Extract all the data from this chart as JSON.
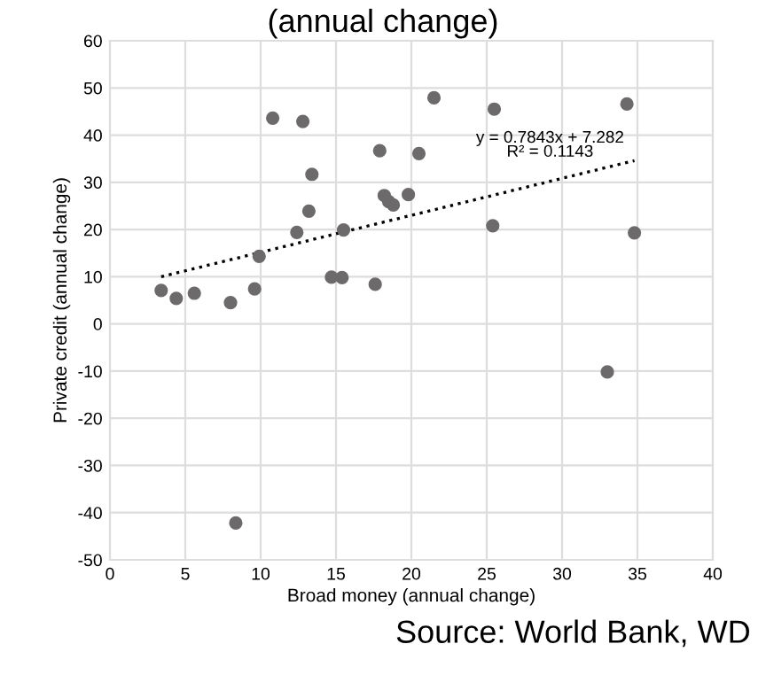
{
  "chart_data": {
    "type": "scatter",
    "title": "(annual change)",
    "xlabel": "Broad money (annual change)",
    "ylabel": "Private credit (annual change)",
    "series": [
      {
        "color": "#6d6a6b",
        "marker": "circle",
        "x": [
          3.4,
          4.4,
          5.6,
          8.0,
          9.6,
          9.9,
          10.8,
          12.8,
          12.4,
          13.2,
          13.4,
          14.7,
          15.4,
          15.5,
          17.6,
          17.9,
          18.2,
          18.5,
          18.8,
          19.8,
          20.5,
          21.5,
          25.5,
          34.3,
          25.4,
          34.8,
          33.0,
          8.35
        ],
        "values": [
          7.1,
          5.4,
          6.5,
          4.5,
          7.4,
          14.3,
          43.6,
          42.9,
          19.4,
          23.9,
          31.7,
          9.9,
          9.8,
          19.9,
          8.4,
          36.7,
          27.2,
          25.9,
          25.2,
          27.4,
          36.1,
          47.9,
          45.5,
          46.6,
          20.8,
          19.3,
          -10.2,
          -42.2
        ]
      },
      {
        "type": "line",
        "color": "#000000",
        "line_style": "dotted",
        "marker": "none",
        "x": [
          3.4,
          34.8
        ],
        "values": [
          10,
          34.6
        ]
      }
    ],
    "xlim": [
      0,
      40
    ],
    "xticks": [
      0,
      5,
      10,
      15,
      20,
      25,
      30,
      35,
      40
    ],
    "ylim": [
      -50,
      60
    ],
    "yticks": [
      -50,
      -40,
      -30,
      -20,
      -10,
      0,
      10,
      20,
      30,
      40,
      50,
      60
    ],
    "grid": true,
    "annotations": [
      "y = 0.7843x + 7.282",
      "R² = 0.1143",
      "Source: World Bank, WD"
    ]
  }
}
